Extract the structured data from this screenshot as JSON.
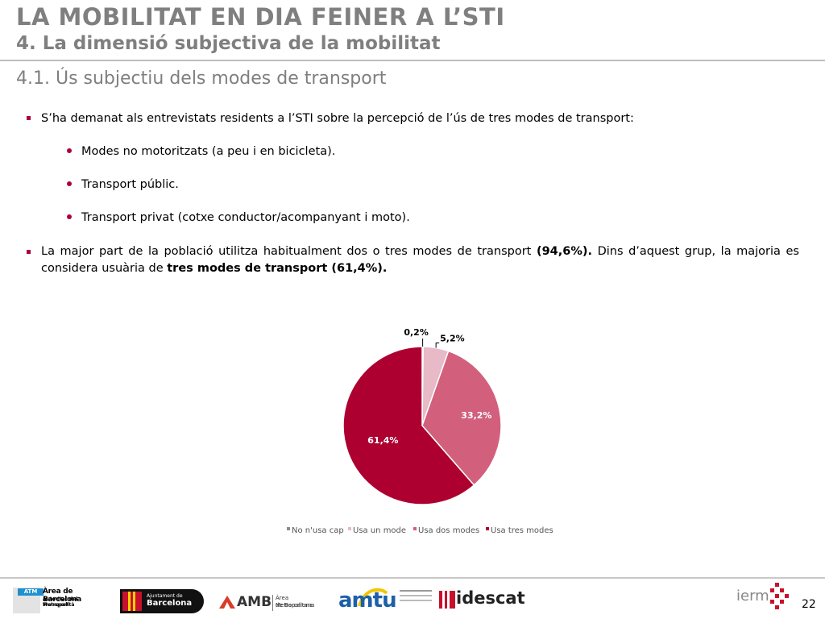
{
  "header": {
    "title": "LA MOBILITAT EN DIA FEINER A L’STI",
    "subtitle": "4. La dimensió subjectiva de la mobilitat",
    "section": "4.1. Ús subjectiu dels modes de transport"
  },
  "body": {
    "bullet1": "S’ha demanat als entrevistats residents a l’STI sobre la percepció de l’ús de tres modes de transport:",
    "subitems": [
      "Modes no motoritzats (a peu i en bicicleta).",
      "Transport públic.",
      "Transport privat (cotxe conductor/acompanyant i moto)."
    ],
    "bullet2_a": "La major part de la població utilitza habitualment dos o tres modes de transport ",
    "bullet2_b": "(94,6%).",
    "bullet2_c": " Dins d’aquest grup, la majoria es considera usuària de ",
    "bullet2_d": "tres modes de transport (61,4%)."
  },
  "chart_data": {
    "type": "pie",
    "categories": [
      "No n'usa cap",
      "Usa un mode",
      "Usa dos modes",
      "Usa tres modes"
    ],
    "values": [
      0.2,
      5.2,
      33.2,
      61.4
    ],
    "labels": [
      "0,2%",
      "5,2%",
      "33,2%",
      "61,4%"
    ],
    "colors": [
      "#8c8c8c",
      "#e8b9c6",
      "#d2607d",
      "#ad0031"
    ],
    "legend_position": "bottom"
  },
  "footer": {
    "page_number": "22",
    "logos": {
      "atm_badge": "ATM",
      "atm_line1": "Àrea de Barcelona",
      "atm_line2": "Autoritat del Transport",
      "atm_line3": "Metropolità",
      "ajuntament_line1": "Ajuntament de",
      "ajuntament_line2": "Barcelona",
      "amb_short": "AMB",
      "amb_line1": "Àrea Metropolitana",
      "amb_line2": "de Barcelona",
      "amtu": "amtu",
      "idescat": "idescat",
      "iermb": "ierm"
    }
  }
}
